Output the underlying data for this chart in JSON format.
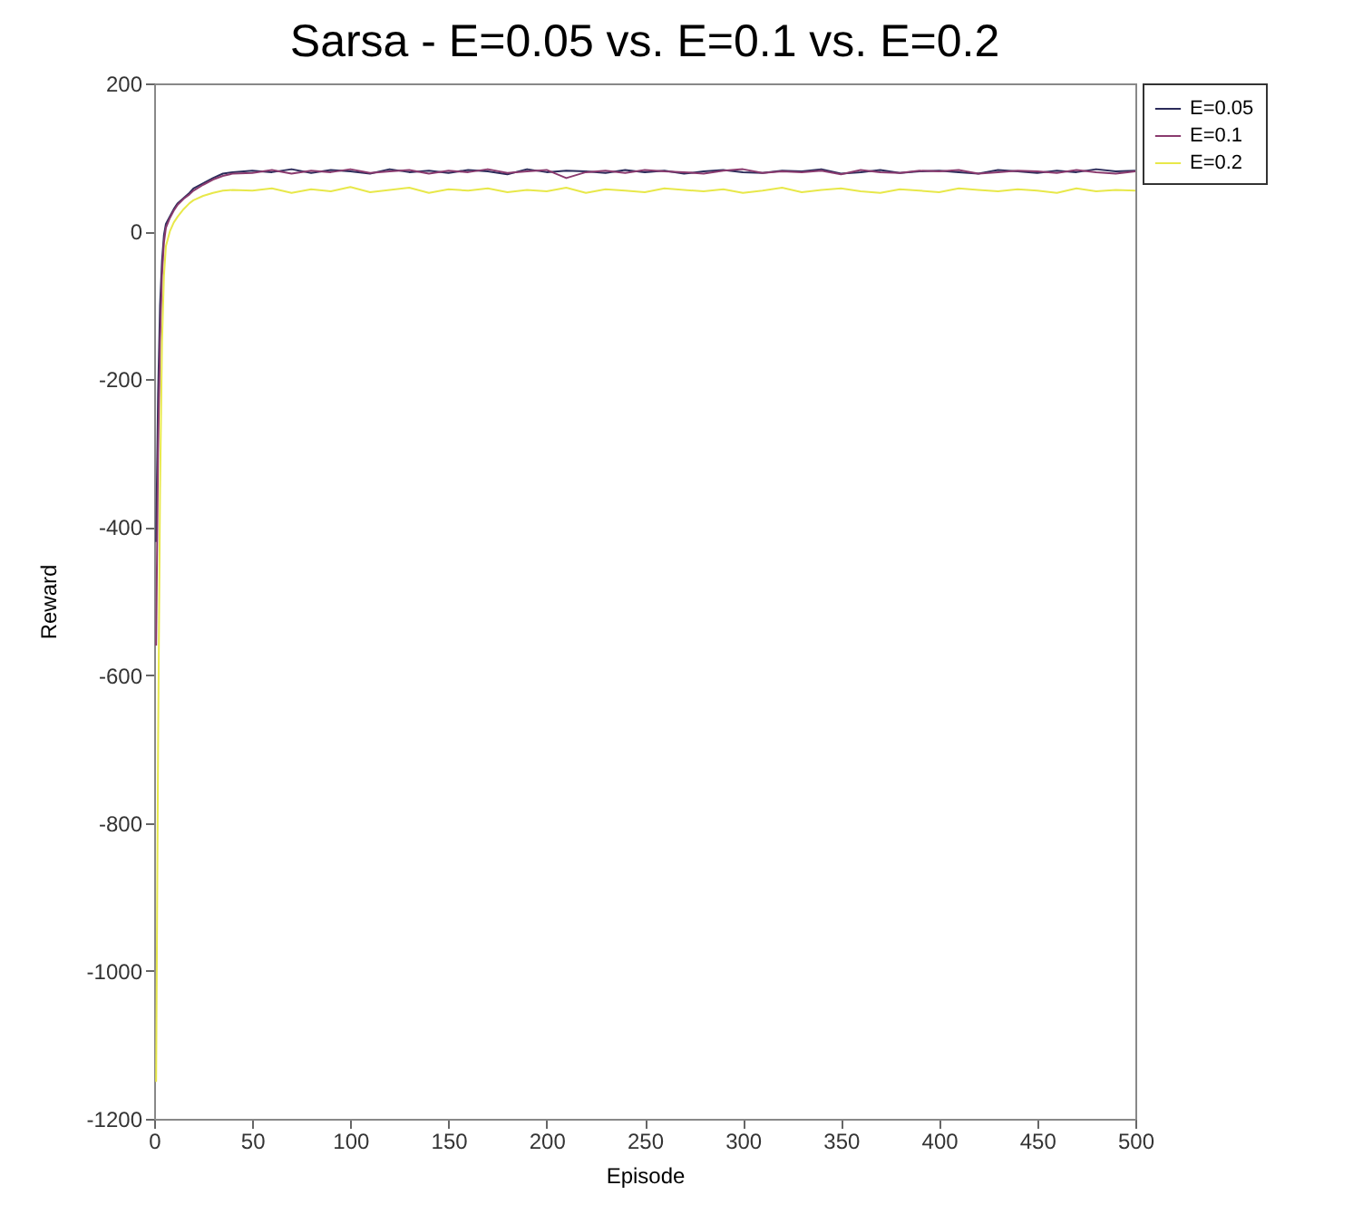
{
  "chart_data": {
    "type": "line",
    "title": "Sarsa - E=0.05 vs. E=0.1 vs. E=0.2",
    "xlabel": "Episode",
    "ylabel": "Reward",
    "x": [
      1,
      2,
      3,
      4,
      5,
      6,
      8,
      10,
      12,
      15,
      18,
      20,
      25,
      30,
      35,
      40,
      50,
      60,
      70,
      80,
      90,
      100,
      110,
      120,
      130,
      140,
      150,
      160,
      170,
      180,
      190,
      200,
      210,
      220,
      230,
      240,
      250,
      260,
      270,
      280,
      290,
      300,
      310,
      320,
      330,
      340,
      350,
      360,
      370,
      380,
      390,
      400,
      410,
      420,
      430,
      440,
      450,
      460,
      470,
      480,
      490,
      500
    ],
    "series": [
      {
        "name": "E=0.05",
        "color": "#2b2b5a",
        "values": [
          -420,
          -220,
          -100,
          -40,
          -5,
          10,
          20,
          30,
          38,
          45,
          52,
          58,
          65,
          72,
          78,
          80,
          82,
          80,
          84,
          79,
          83,
          81,
          78,
          84,
          80,
          82,
          79,
          83,
          81,
          77,
          84,
          80,
          82,
          81,
          79,
          83,
          80,
          82,
          78,
          81,
          83,
          80,
          79,
          82,
          81,
          84,
          78,
          80,
          83,
          79,
          81,
          82,
          80,
          78,
          83,
          81,
          79,
          82,
          80,
          84,
          81,
          82
        ]
      },
      {
        "name": "E=0.1",
        "color": "#8a3a6e",
        "values": [
          -560,
          -300,
          -150,
          -60,
          -15,
          5,
          18,
          28,
          36,
          44,
          50,
          55,
          63,
          70,
          75,
          78,
          79,
          83,
          78,
          82,
          80,
          84,
          79,
          81,
          83,
          78,
          82,
          80,
          84,
          79,
          81,
          83,
          72,
          80,
          82,
          79,
          83,
          81,
          80,
          78,
          82,
          84,
          79,
          81,
          80,
          82,
          77,
          83,
          80,
          79,
          82,
          81,
          83,
          78,
          80,
          82,
          81,
          79,
          83,
          80,
          78,
          81
        ]
      },
      {
        "name": "E=0.2",
        "color": "#e8e84a",
        "values": [
          -1150,
          -700,
          -350,
          -150,
          -60,
          -20,
          0,
          12,
          20,
          30,
          38,
          42,
          48,
          52,
          55,
          56,
          55,
          58,
          52,
          57,
          54,
          60,
          53,
          56,
          59,
          52,
          57,
          55,
          58,
          53,
          56,
          54,
          59,
          52,
          57,
          55,
          53,
          58,
          56,
          54,
          57,
          52,
          55,
          59,
          53,
          56,
          58,
          54,
          52,
          57,
          55,
          53,
          58,
          56,
          54,
          57,
          55,
          52,
          58,
          54,
          56,
          55
        ]
      }
    ],
    "xlim": [
      0,
      500
    ],
    "xticks": [
      0,
      50,
      100,
      150,
      200,
      250,
      300,
      350,
      400,
      450,
      500
    ],
    "ylim": [
      -1200,
      200
    ],
    "yticks": [
      -1200,
      -1000,
      -800,
      -600,
      -400,
      -200,
      0,
      200
    ],
    "legend": "top right",
    "line_style": "solid"
  }
}
